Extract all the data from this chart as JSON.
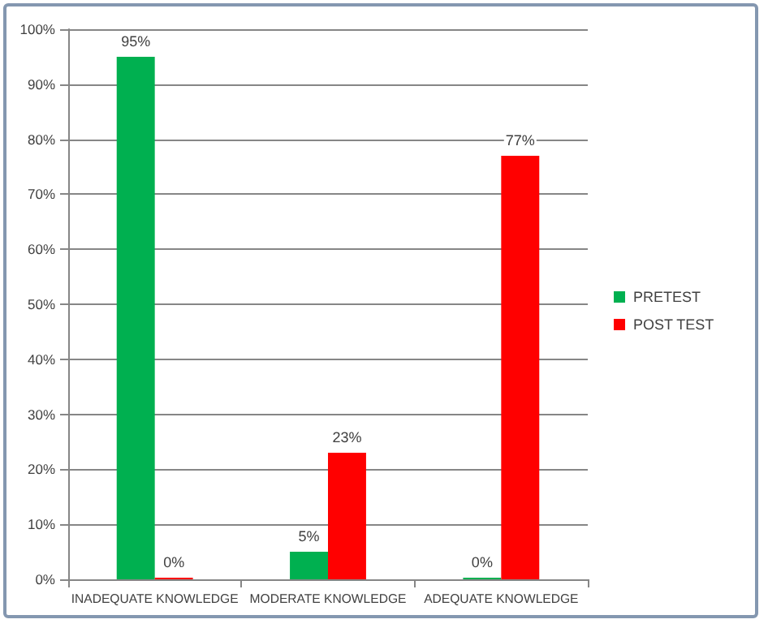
{
  "chart_data": {
    "type": "bar",
    "categories": [
      "INADEQUATE KNOWLEDGE",
      "MODERATE KNOWLEDGE",
      "ADEQUATE KNOWLEDGE"
    ],
    "series": [
      {
        "name": "PRETEST",
        "color": "#00b050",
        "values": [
          95,
          5,
          0
        ],
        "value_labels": [
          "95%",
          "5%",
          "0%"
        ]
      },
      {
        "name": "POST TEST",
        "color": "#ff0000",
        "values": [
          0,
          23,
          77
        ],
        "value_labels": [
          "0%",
          "23%",
          "77%"
        ]
      }
    ],
    "ylim": [
      0,
      100
    ],
    "yticks": [
      {
        "value": 0,
        "label": "0%"
      },
      {
        "value": 10,
        "label": "10%"
      },
      {
        "value": 20,
        "label": "20%"
      },
      {
        "value": 30,
        "label": "30%"
      },
      {
        "value": 40,
        "label": "40%"
      },
      {
        "value": 50,
        "label": "50%"
      },
      {
        "value": 60,
        "label": "60%"
      },
      {
        "value": 70,
        "label": "70%"
      },
      {
        "value": 80,
        "label": "80%"
      },
      {
        "value": 90,
        "label": "90%"
      },
      {
        "value": 100,
        "label": "100%"
      }
    ],
    "grid": "y",
    "legend": "right"
  }
}
